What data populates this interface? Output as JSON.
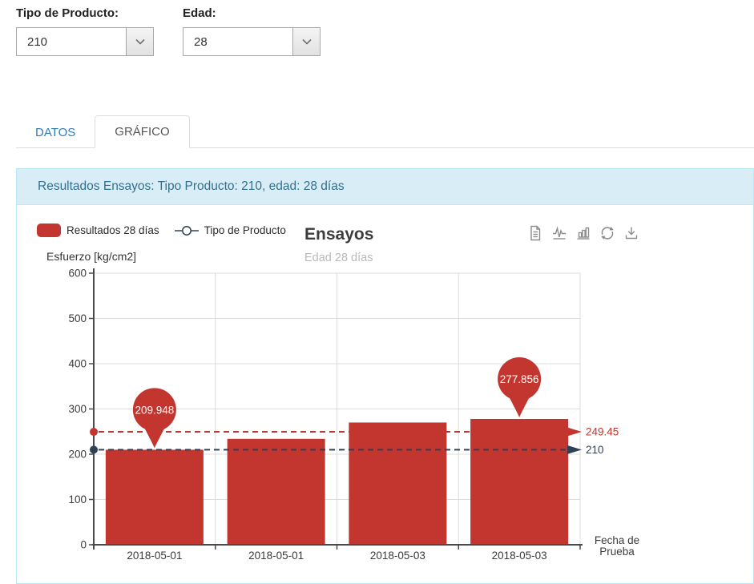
{
  "filters": {
    "product_type": {
      "label": "Tipo de Producto:",
      "value": "210"
    },
    "age": {
      "label": "Edad:",
      "value": "28"
    }
  },
  "tabs": {
    "datos": "DATOS",
    "grafico": "GRÁFICO"
  },
  "panel": {
    "heading": "Resultados Ensayos: Tipo Producto: 210, edad: 28 días"
  },
  "chart": {
    "title": "Ensayos",
    "subtitle": "Edad 28 días",
    "y_axis_title": "Esfuerzo [kg/cm2]",
    "legend": [
      {
        "label": "Resultados 28 días"
      },
      {
        "label": "Tipo de Producto"
      }
    ],
    "toolbar_icons": [
      "data-table-icon",
      "line-chart-icon",
      "bar-chart-icon",
      "refresh-icon",
      "download-icon"
    ]
  },
  "chart_data": {
    "type": "bar",
    "title": "Ensayos",
    "subtitle": "Edad 28 días",
    "ylabel": "Esfuerzo [kg/cm2]",
    "xlabel": "Fecha de Prueba",
    "xlabel_lines": [
      "Fecha de",
      "Prueba"
    ],
    "ylim": [
      0,
      600
    ],
    "ytick_interval": 100,
    "grid": true,
    "legend_position": "top-left",
    "categories": [
      "2018-05-01",
      "2018-05-01",
      "2018-05-03",
      "2018-05-03"
    ],
    "series": [
      {
        "name": "Resultados 28 días",
        "color": "#c2362f",
        "values": [
          209.948,
          234,
          270,
          277.856
        ]
      }
    ],
    "point_labels": [
      {
        "index": 0,
        "text": "209.948"
      },
      {
        "index": 3,
        "text": "277.856"
      }
    ],
    "reference_lines": [
      {
        "value": 249.45,
        "label": "249.45",
        "color": "#c2362f",
        "style": "dashed"
      },
      {
        "value": 210,
        "label": "210",
        "color": "#2e4156",
        "style": "dashed",
        "name": "Tipo de Producto"
      }
    ],
    "colors": {
      "bar": "#c2362f",
      "navy": "#2e4156",
      "axis": "#4a4a4a",
      "grid": "#dcdcdc",
      "tick_text": "#3a3a3a"
    }
  }
}
